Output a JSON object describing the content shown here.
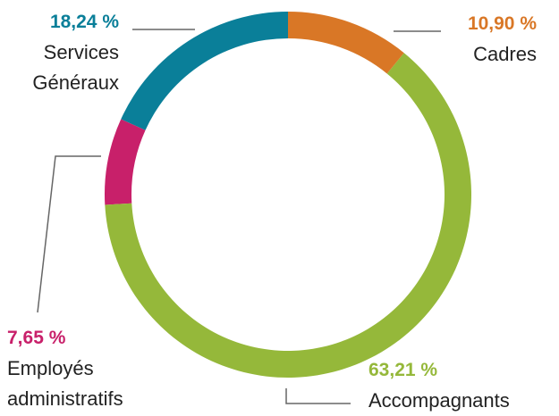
{
  "chart_data": {
    "type": "donut",
    "categories": [
      "Cadres",
      "Accompagnants",
      "Employés administratifs",
      "Services Généraux"
    ],
    "values": [
      10.9,
      63.21,
      7.65,
      18.24
    ],
    "value_labels": [
      "10,90 %",
      "63,21 %",
      "7,65 %",
      "18,24 %"
    ],
    "colors": [
      "#d97726",
      "#95b83a",
      "#c8206a",
      "#0a7f99"
    ]
  }
}
